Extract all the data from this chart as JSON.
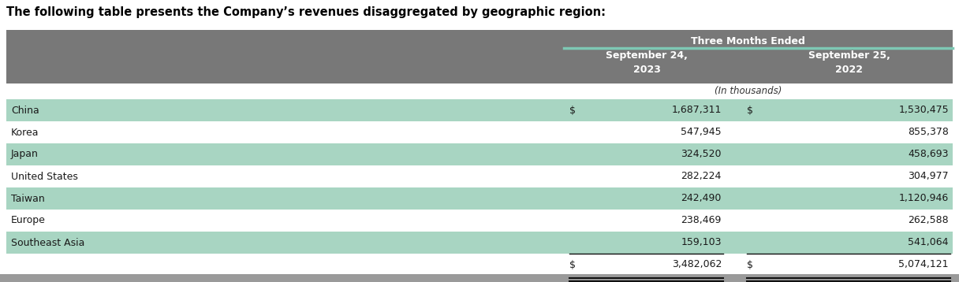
{
  "title_text": "The following table presents the Company’s revenues disaggregated by geographic region:",
  "header_bg_color": "#787878",
  "header_text_color": "#ffffff",
  "teal_line_color": "#7ec8b4",
  "col_header_main": "Three Months Ended",
  "col_header_sub1": "September 24,\n2023",
  "col_header_sub2": "September 25,\n2022",
  "unit_label": "(In thousands)",
  "rows": [
    {
      "region": "China",
      "val1": "1,687,311",
      "val2": "1,530,475",
      "dollar1": true,
      "dollar2": true,
      "shaded": true
    },
    {
      "region": "Korea",
      "val1": "547,945",
      "val2": "855,378",
      "dollar1": false,
      "dollar2": false,
      "shaded": false
    },
    {
      "region": "Japan",
      "val1": "324,520",
      "val2": "458,693",
      "dollar1": false,
      "dollar2": false,
      "shaded": true
    },
    {
      "region": "United States",
      "val1": "282,224",
      "val2": "304,977",
      "dollar1": false,
      "dollar2": false,
      "shaded": false
    },
    {
      "region": "Taiwan",
      "val1": "242,490",
      "val2": "1,120,946",
      "dollar1": false,
      "dollar2": false,
      "shaded": true
    },
    {
      "region": "Europe",
      "val1": "238,469",
      "val2": "262,588",
      "dollar1": false,
      "dollar2": false,
      "shaded": false
    },
    {
      "region": "Southeast Asia",
      "val1": "159,103",
      "val2": "541,064",
      "dollar1": false,
      "dollar2": false,
      "shaded": true
    }
  ],
  "total_row": {
    "val1": "3,482,062",
    "val2": "5,074,121",
    "dollar1": true,
    "dollar2": true
  },
  "row_shaded_color": "#a8d5c2",
  "row_white_color": "#ffffff",
  "text_color": "#1a1a1a",
  "bottom_bar_color": "#9a9a9a",
  "font_size": 9.0,
  "header_font_size": 9.0,
  "title_font_size": 10.5
}
